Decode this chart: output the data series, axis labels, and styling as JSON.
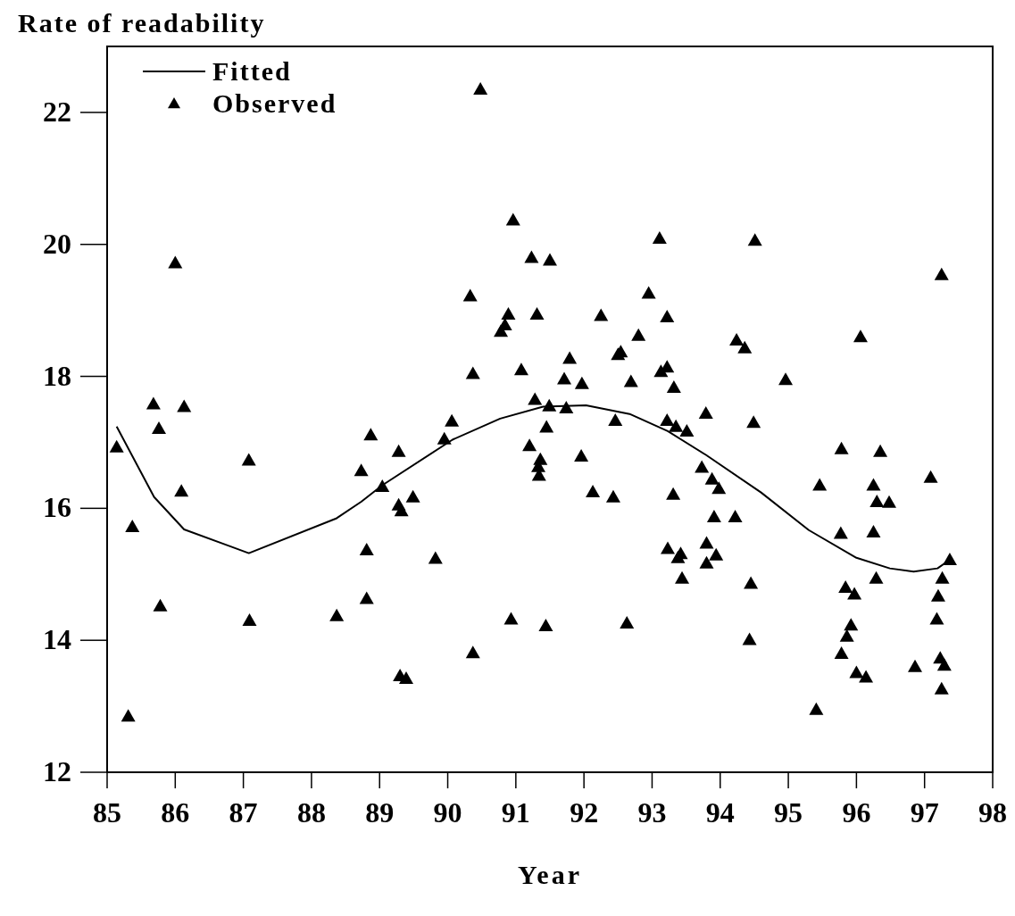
{
  "chart_data": {
    "type": "scatter",
    "title": "Rate of readability",
    "xlabel": "Year",
    "xlim": [
      85,
      98
    ],
    "xticks": [
      85,
      86,
      87,
      88,
      89,
      90,
      91,
      92,
      93,
      94,
      95,
      96,
      97,
      98
    ],
    "ylim": [
      12,
      23
    ],
    "yticks": [
      12,
      14,
      16,
      18,
      20,
      22
    ],
    "grid": false,
    "legend": "top left",
    "series": [
      {
        "name": "Fitted",
        "type": "line",
        "color": "#000000",
        "marker": "none",
        "line_style": "solid",
        "x": [
          85.14,
          85.69,
          86.13,
          87.08,
          88.37,
          88.73,
          89.04,
          90.07,
          90.77,
          91.4,
          92.03,
          92.67,
          93.23,
          93.79,
          94.6,
          95.3,
          96.0,
          96.49,
          96.84,
          97.19,
          97.37
        ],
        "values": [
          17.24,
          16.17,
          15.68,
          15.32,
          15.85,
          16.1,
          16.35,
          17.04,
          17.36,
          17.54,
          17.56,
          17.43,
          17.17,
          16.81,
          16.24,
          15.67,
          15.25,
          15.09,
          15.04,
          15.09,
          15.22
        ]
      },
      {
        "name": "Observed",
        "type": "scatter",
        "color": "#000000",
        "marker": "triangle",
        "x": [
          85.14,
          85.31,
          85.37,
          85.68,
          85.76,
          85.78,
          86.0,
          86.13,
          86.09,
          87.08,
          87.09,
          88.37,
          88.73,
          88.87,
          88.81,
          88.81,
          89.04,
          89.28,
          89.28,
          89.32,
          89.49,
          89.3,
          89.39,
          89.82,
          90.06,
          89.95,
          90.37,
          90.33,
          90.37,
          90.48,
          90.78,
          90.84,
          90.89,
          90.96,
          90.93,
          91.08,
          91.23,
          91.31,
          91.5,
          91.28,
          91.49,
          91.45,
          91.2,
          91.36,
          91.33,
          91.34,
          91.44,
          91.71,
          91.79,
          91.74,
          91.97,
          91.96,
          92.13,
          92.25,
          92.43,
          92.46,
          92.5,
          92.54,
          92.63,
          92.69,
          92.8,
          92.95,
          93.11,
          93.22,
          93.13,
          93.22,
          93.22,
          93.32,
          93.35,
          93.31,
          93.23,
          93.42,
          93.38,
          93.44,
          93.51,
          93.79,
          93.73,
          93.88,
          93.98,
          93.91,
          94.22,
          93.8,
          93.94,
          93.8,
          94.24,
          94.36,
          94.51,
          94.49,
          94.45,
          94.43,
          94.96,
          95.41,
          95.46,
          95.78,
          95.77,
          95.84,
          95.97,
          95.92,
          95.86,
          95.78,
          96.0,
          96.14,
          96.06,
          96.25,
          96.3,
          96.35,
          96.48,
          96.25,
          96.29,
          96.86,
          97.09,
          97.18,
          97.2,
          97.25,
          97.26,
          97.37,
          97.23,
          97.29,
          97.25
        ],
        "values": [
          16.93,
          12.85,
          15.72,
          17.58,
          17.21,
          14.52,
          19.72,
          17.54,
          16.26,
          16.73,
          14.3,
          14.37,
          16.57,
          17.11,
          15.37,
          14.63,
          16.33,
          16.86,
          16.05,
          15.96,
          16.17,
          13.46,
          13.42,
          15.24,
          17.32,
          17.05,
          13.81,
          19.22,
          18.04,
          22.35,
          18.68,
          18.78,
          18.94,
          20.37,
          14.32,
          18.1,
          19.8,
          18.94,
          19.76,
          17.65,
          17.55,
          17.23,
          16.95,
          16.74,
          16.63,
          16.5,
          14.22,
          17.96,
          18.27,
          17.52,
          17.89,
          16.79,
          16.25,
          18.92,
          16.17,
          17.33,
          18.33,
          18.37,
          14.26,
          17.92,
          18.62,
          19.26,
          20.09,
          18.9,
          18.07,
          18.14,
          17.33,
          17.83,
          17.24,
          16.21,
          15.39,
          15.31,
          15.25,
          14.94,
          17.17,
          17.44,
          16.62,
          16.44,
          16.3,
          15.87,
          15.87,
          15.47,
          15.29,
          15.17,
          18.55,
          18.43,
          20.06,
          17.3,
          14.86,
          14.01,
          17.95,
          12.95,
          16.35,
          16.9,
          15.62,
          14.8,
          14.7,
          14.23,
          14.06,
          13.8,
          13.51,
          13.44,
          18.6,
          16.35,
          16.1,
          16.86,
          16.09,
          15.64,
          14.94,
          13.6,
          16.47,
          14.32,
          14.67,
          19.54,
          14.94,
          15.22,
          13.73,
          13.62,
          13.26
        ]
      }
    ]
  }
}
